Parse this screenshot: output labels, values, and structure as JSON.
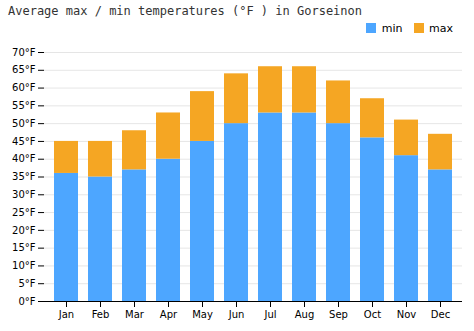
{
  "chart_data": {
    "type": "bar",
    "title": "Average max / min temperatures (°F ) in Gorseinon",
    "stacked": true,
    "categories": [
      "Jan",
      "Feb",
      "Mar",
      "Apr",
      "May",
      "Jun",
      "Jul",
      "Aug",
      "Sep",
      "Oct",
      "Nov",
      "Dec"
    ],
    "series": [
      {
        "name": "min",
        "color": "#4da6ff",
        "values": [
          36,
          35,
          37,
          40,
          45,
          50,
          53,
          53,
          50,
          46,
          41,
          37
        ]
      },
      {
        "name": "max",
        "color": "#f5a623",
        "values": [
          9,
          10,
          11,
          13,
          14,
          14,
          13,
          13,
          12,
          11,
          10,
          10
        ]
      }
    ],
    "ylim": [
      0,
      70
    ],
    "yticks": [
      {
        "value": 0,
        "label": "0°F"
      },
      {
        "value": 5,
        "label": "5°F"
      },
      {
        "value": 10,
        "label": "10°F"
      },
      {
        "value": 15,
        "label": "15°F"
      },
      {
        "value": 20,
        "label": "20°F"
      },
      {
        "value": 25,
        "label": "25°F"
      },
      {
        "value": 30,
        "label": "30°F"
      },
      {
        "value": 35,
        "label": "35°F"
      },
      {
        "value": 40,
        "label": "40°F"
      },
      {
        "value": 45,
        "label": "45°F"
      },
      {
        "value": 50,
        "label": "50°F"
      },
      {
        "value": 55,
        "label": "55°F"
      },
      {
        "value": 60,
        "label": "60°F"
      },
      {
        "value": 65,
        "label": "65°F"
      },
      {
        "value": 70,
        "label": "70°F"
      }
    ],
    "grid": true,
    "legend": "upper right"
  }
}
